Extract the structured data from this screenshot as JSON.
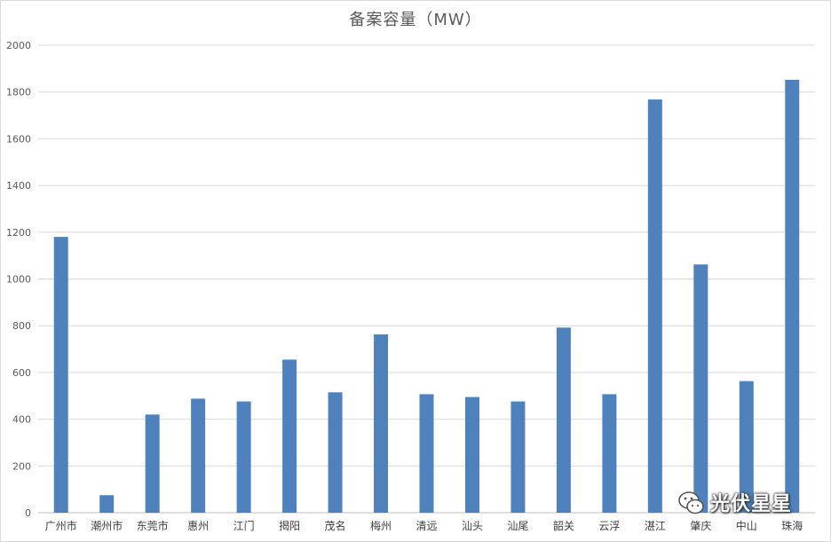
{
  "chart_data": {
    "type": "bar",
    "title": "备案容量（MW）",
    "categories": [
      "广州市",
      "潮州市",
      "东莞市",
      "惠州",
      "江门",
      "揭阳",
      "茂名",
      "梅州",
      "清远",
      "汕头",
      "汕尾",
      "韶关",
      "云浮",
      "湛江",
      "肇庆",
      "中山",
      "珠海"
    ],
    "values": [
      1180,
      75,
      420,
      488,
      476,
      655,
      515,
      763,
      507,
      495,
      476,
      792,
      507,
      1768,
      1062,
      563,
      1852
    ],
    "ylim": [
      0,
      2000
    ],
    "yticks": [
      0,
      200,
      400,
      600,
      800,
      1000,
      1200,
      1400,
      1600,
      1800,
      2000
    ],
    "grid": true,
    "bar_color": "#4f81bd"
  },
  "watermark": {
    "text": "光伏星星",
    "icon": "wechat-icon"
  }
}
